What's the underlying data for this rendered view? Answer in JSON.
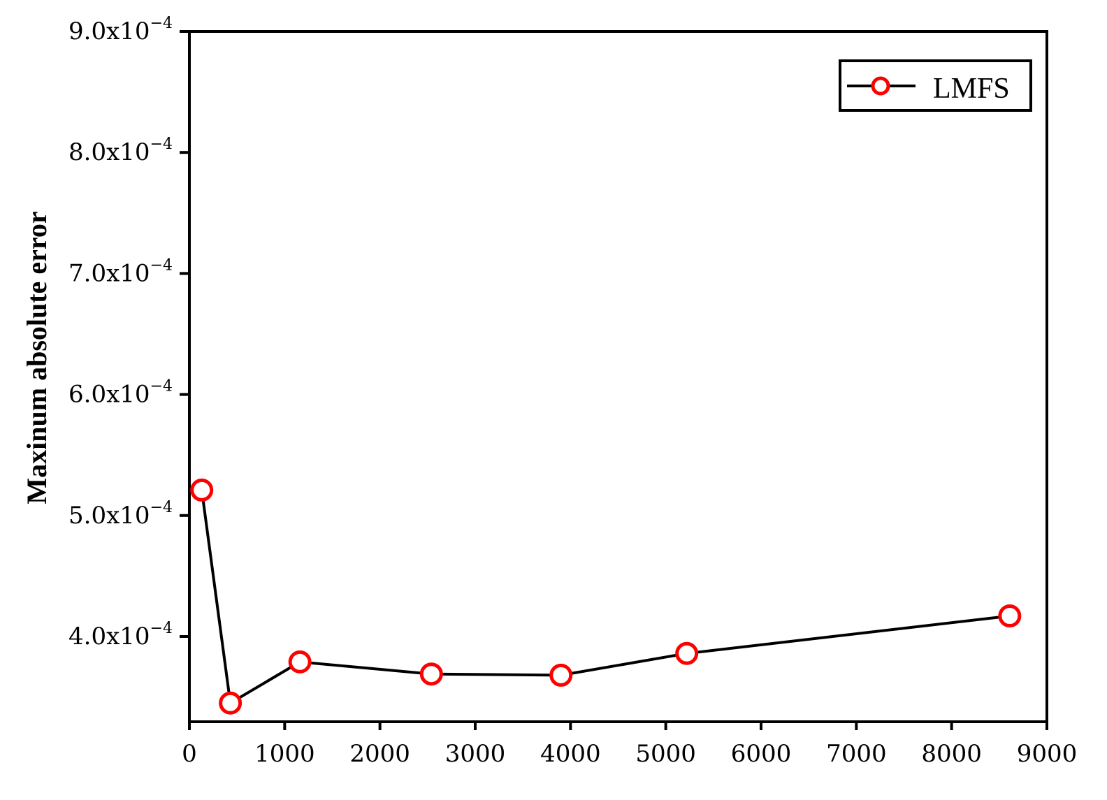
{
  "chart_data": {
    "type": "line",
    "title": "",
    "xlabel": "",
    "ylabel": "Maxinum absolute error",
    "xlim": [
      0,
      9000
    ],
    "ylim": [
      0.00033,
      0.0009
    ],
    "x_ticks": [
      {
        "value": 0,
        "label": "0"
      },
      {
        "value": 1000,
        "label": "1000"
      },
      {
        "value": 2000,
        "label": "2000"
      },
      {
        "value": 3000,
        "label": "3000"
      },
      {
        "value": 4000,
        "label": "4000"
      },
      {
        "value": 5000,
        "label": "5000"
      },
      {
        "value": 6000,
        "label": "6000"
      },
      {
        "value": 7000,
        "label": "7000"
      },
      {
        "value": 8000,
        "label": "8000"
      },
      {
        "value": 9000,
        "label": "9000"
      }
    ],
    "y_ticks": [
      {
        "value": 0.0004,
        "mantissa": "4.0x10",
        "exponent": "−4"
      },
      {
        "value": 0.0005,
        "mantissa": "5.0x10",
        "exponent": "−4"
      },
      {
        "value": 0.0006,
        "mantissa": "6.0x10",
        "exponent": "−4"
      },
      {
        "value": 0.0007,
        "mantissa": "7.0x10",
        "exponent": "−4"
      },
      {
        "value": 0.0008,
        "mantissa": "8.0x10",
        "exponent": "−4"
      },
      {
        "value": 0.0009,
        "mantissa": "9.0x10",
        "exponent": "−4"
      }
    ],
    "grid": false,
    "legend_position": "top-right",
    "series": [
      {
        "name": "LMFS",
        "line_color": "#000000",
        "marker": "open-circle",
        "marker_color": "#ff0000",
        "x": [
          130,
          430,
          1160,
          2540,
          3900,
          5220,
          8610
        ],
        "y": [
          0.000521,
          0.000345,
          0.000379,
          0.000369,
          0.000368,
          0.000386,
          0.000417
        ]
      }
    ]
  }
}
